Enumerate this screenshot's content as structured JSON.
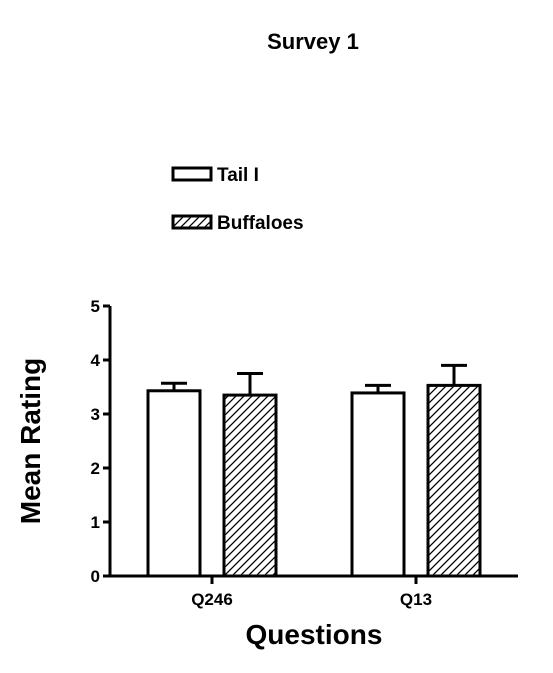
{
  "chart_data": {
    "type": "bar",
    "title": "Survey 1",
    "xlabel": "Questions",
    "ylabel": "Mean Rating",
    "categories": [
      "Q246",
      "Q13"
    ],
    "ylim": [
      0,
      5
    ],
    "yticks": [
      0,
      1,
      2,
      3,
      4,
      5
    ],
    "grid": false,
    "legend_position": "top-left",
    "series": [
      {
        "name": "Tail I",
        "fill": "white",
        "values": [
          3.43,
          3.39
        ],
        "errors": [
          0.14,
          0.14
        ]
      },
      {
        "name": "Buffaloes",
        "fill": "hatch",
        "values": [
          3.35,
          3.53
        ],
        "errors": [
          0.4,
          0.37
        ]
      }
    ]
  }
}
